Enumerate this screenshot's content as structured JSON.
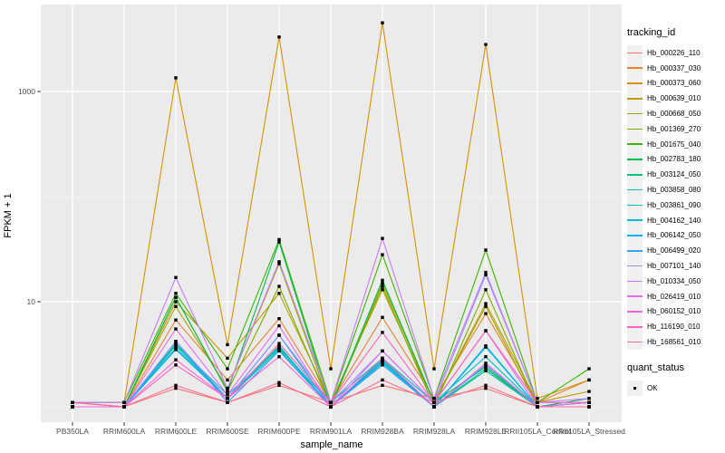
{
  "figure": {
    "background": "#FFFFFF",
    "panel_bg": "#EBEBEB",
    "grid_major": "#FFFFFF",
    "grid_minor": "#F5F5F5",
    "tick_mark_color": "#333333",
    "tick_label_color": "#4D4D4D",
    "axis_title_color": "#000000",
    "point_color": "#000000",
    "legend_key_bg": "#F0F0F0"
  },
  "legend": {
    "tracking_title": "tracking_id",
    "quant_title": "quant_status",
    "quant_items": [
      {
        "label": "OK"
      }
    ]
  },
  "axes": {
    "y_tick_labels": [
      "1000",
      "10"
    ],
    "y_tick_values": [
      1000,
      10
    ],
    "y_minor_values": [
      100,
      1
    ]
  },
  "chart_data": {
    "type": "line",
    "title": "",
    "xlabel": "sample_name",
    "ylabel": "FPKM + 1",
    "y_scale": "log10",
    "ylim": [
      0.95,
      6000
    ],
    "grid": true,
    "legend_position": "right",
    "point_shape": "filled-square-black",
    "categories": [
      "PB350LA",
      "RRIM600LA",
      "RRIM600LE",
      "RRIM600SE",
      "RRIM600PE",
      "RRIM901LA",
      "RRIM928BA",
      "RRIM928LA",
      "RRIM928LE",
      "RRII105LA_Control",
      "RRII105LA_Stressed"
    ],
    "series": [
      {
        "name": "Hb_000226_110",
        "color": "#F8766D",
        "values": [
          1.1,
          1.0,
          1.5,
          1.1,
          1.6,
          1.1,
          1.6,
          1.2,
          1.5,
          1.0,
          1.0
        ]
      },
      {
        "name": "Hb_000337_030",
        "color": "#EA8331",
        "values": [
          1.1,
          1.0,
          6.7,
          1.8,
          6.9,
          1.1,
          7.1,
          1.2,
          7.7,
          1.1,
          1.8
        ]
      },
      {
        "name": "Hb_000373_060",
        "color": "#D89000",
        "values": [
          1.1,
          1.1,
          1350,
          3.9,
          3300,
          2.3,
          4500,
          2.3,
          2800,
          1.2,
          1.8
        ]
      },
      {
        "name": "Hb_000639_010",
        "color": "#C09B00",
        "values": [
          1.0,
          1.0,
          10,
          2.9,
          12,
          1.1,
          13,
          1.1,
          9.6,
          1.1,
          1.4
        ]
      },
      {
        "name": "Hb_000668_050",
        "color": "#A3A500",
        "values": [
          1.0,
          1.0,
          9,
          1.5,
          23,
          1.0,
          15,
          1.1,
          9.0,
          1.0,
          1.1
        ]
      },
      {
        "name": "Hb_001369_270",
        "color": "#7CAE00",
        "values": [
          1.0,
          1.0,
          11,
          1.4,
          14,
          1.0,
          14,
          1.0,
          13,
          1.0,
          1.1
        ]
      },
      {
        "name": "Hb_001675_040",
        "color": "#39B600",
        "values": [
          1.1,
          1.1,
          12,
          2.3,
          39,
          1.1,
          28,
          1.2,
          31,
          1.1,
          2.3
        ]
      },
      {
        "name": "Hb_002783_180",
        "color": "#00BB4E",
        "values": [
          1.0,
          1.0,
          11,
          1.4,
          37,
          1.0,
          16,
          1.1,
          2.4,
          1.0,
          1.2
        ]
      },
      {
        "name": "Hb_003124_050",
        "color": "#00BF7D",
        "values": [
          1.0,
          1.0,
          4.0,
          1.2,
          3.8,
          1.0,
          2.8,
          1.0,
          2.3,
          1.0,
          1.1
        ]
      },
      {
        "name": "Hb_003858_080",
        "color": "#00C1A3",
        "values": [
          1.0,
          1.0,
          3.8,
          1.2,
          3.5,
          1.0,
          2.7,
          1.0,
          2.2,
          1.0,
          1.1
        ]
      },
      {
        "name": "Hb_003861_090",
        "color": "#00BFC4",
        "values": [
          1.1,
          1.0,
          3.9,
          1.3,
          3.6,
          1.1,
          2.9,
          1.1,
          3.0,
          1.0,
          1.1
        ]
      },
      {
        "name": "Hb_004162_140",
        "color": "#00BAE0",
        "values": [
          1.0,
          1.0,
          3.5,
          1.2,
          3.7,
          1.0,
          2.6,
          1.0,
          3.7,
          1.0,
          1.0
        ]
      },
      {
        "name": "Hb_006142_050",
        "color": "#00B0F6",
        "values": [
          1.0,
          1.0,
          3.6,
          1.2,
          4.8,
          1.0,
          2.7,
          1.0,
          3.8,
          1.0,
          1.1
        ]
      },
      {
        "name": "Hb_006499_020",
        "color": "#35A2FF",
        "values": [
          1.0,
          1.0,
          4.2,
          1.1,
          3.4,
          1.0,
          2.5,
          1.0,
          2.5,
          1.0,
          1.0
        ]
      },
      {
        "name": "Hb_007101_140",
        "color": "#9590FF",
        "values": [
          1.1,
          1.0,
          4.2,
          1.2,
          4.8,
          1.1,
          3.4,
          1.1,
          18,
          1.1,
          1.1
        ]
      },
      {
        "name": "Hb_010334_050",
        "color": "#C77CFF",
        "values": [
          1.1,
          1.1,
          17,
          1.5,
          24,
          1.1,
          40,
          1.2,
          19,
          1.1,
          1.2
        ]
      },
      {
        "name": "Hb_026419_010",
        "color": "#E76BF3",
        "values": [
          1.0,
          1.0,
          5.5,
          1.3,
          5.9,
          1.0,
          3.4,
          1.1,
          5.3,
          1.0,
          1.1
        ]
      },
      {
        "name": "Hb_060152_010",
        "color": "#FA62DB",
        "values": [
          1.0,
          1.0,
          2.8,
          1.2,
          3.0,
          1.0,
          2.9,
          1.0,
          2.6,
          1.0,
          1.0
        ]
      },
      {
        "name": "Hb_116190_010",
        "color": "#FF62BC",
        "values": [
          1.1,
          1.0,
          2.5,
          1.2,
          4.0,
          1.1,
          5.1,
          1.1,
          5.3,
          1.1,
          1.1
        ]
      },
      {
        "name": "Hb_168561_010",
        "color": "#FF6A98",
        "values": [
          1.1,
          1.0,
          1.6,
          1.1,
          1.7,
          1.0,
          1.8,
          1.1,
          1.6,
          1.0,
          1.0
        ]
      }
    ]
  }
}
